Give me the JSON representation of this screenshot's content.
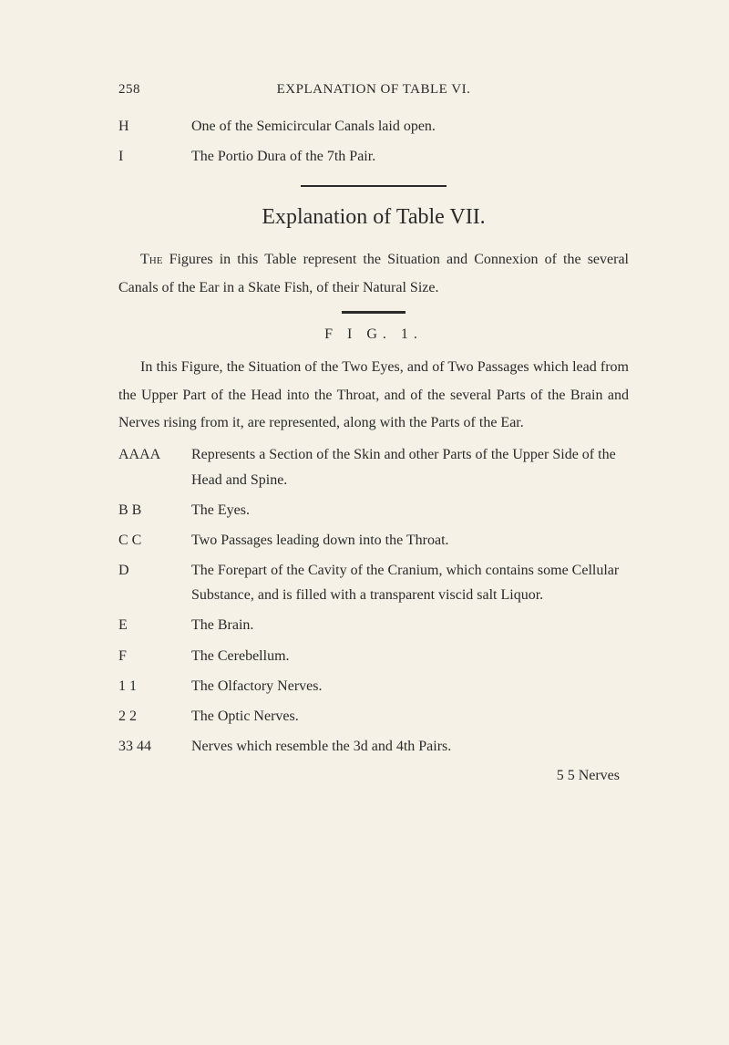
{
  "page_number": "258",
  "running_head": "EXPLANATION OF TABLE VI.",
  "top_defs": [
    {
      "label": "H",
      "text": "One of the Semicircular Canals laid open."
    },
    {
      "label": "I",
      "text": "The Portio Dura of the 7th Pair."
    }
  ],
  "section_title": "Explanation of Table VII.",
  "intro_para": "The Figures in this Table represent the Situation and Connexion of the several Canals of the Ear in a Skate Fish, of their Natural Size.",
  "fig_label": "F I G.   1.",
  "fig_para": "In this Figure, the Situation of the Two Eyes, and of Two Passages which lead from the Upper Part of the Head into the Throat, and of the several Parts of the Brain and Nerves rising from it, are represented, along with the Parts of the Ear.",
  "entries": [
    {
      "label": "AAAA",
      "text": "Represents a Section of the Skin and other Parts of the Upper Side of the Head and Spine."
    },
    {
      "label": "B B",
      "text": "The Eyes."
    },
    {
      "label": "C C",
      "text": "Two Passages leading down into the Throat."
    },
    {
      "label": "D",
      "text": "The Forepart of the Cavity of the Cranium, which contains some Cellular Substance, and is filled with a transparent viscid salt Liquor."
    },
    {
      "label": "E",
      "text": "The Brain."
    },
    {
      "label": "F",
      "text": "The Cerebellum."
    },
    {
      "label": "1 1",
      "text": "The Olfactory Nerves."
    },
    {
      "label": "2 2",
      "text": "The Optic Nerves."
    },
    {
      "label": "33 44",
      "text": "Nerves which resemble the 3d and 4th Pairs."
    }
  ],
  "catchword": "5 5   Nerves"
}
